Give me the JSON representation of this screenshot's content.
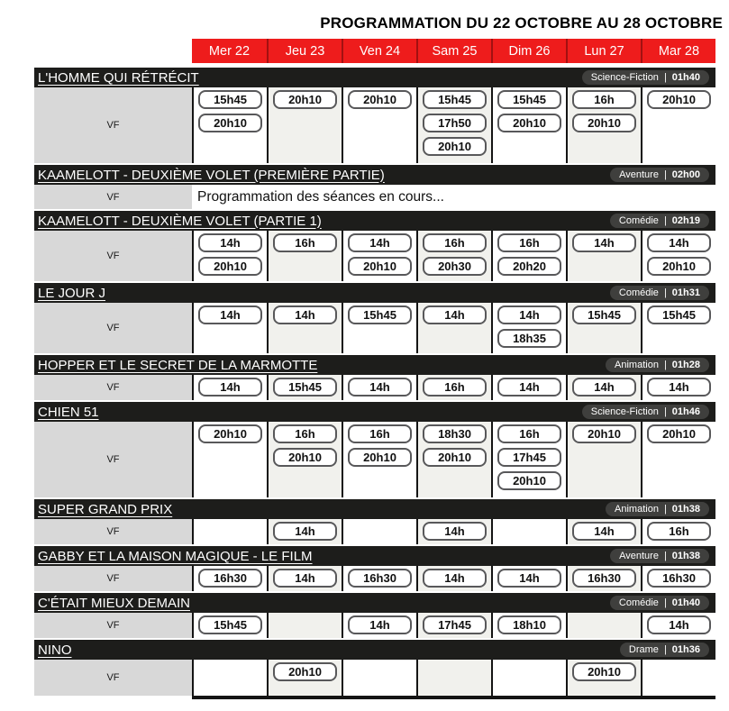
{
  "header": {
    "title": "PROGRAMMATION DU 22 OCTOBRE AU 28 OCTOBRE"
  },
  "days": [
    "Mer 22",
    "Jeu 23",
    "Ven 24",
    "Sam 25",
    "Dim 26",
    "Lun 27",
    "Mar 28"
  ],
  "labels": {
    "version": "VF",
    "badge_separator": "|"
  },
  "colors": {
    "header_red": "#ee1c1c",
    "bar_black": "#1d1d1b",
    "badge_gray": "#3f3f3d",
    "vf_cell_gray": "#d8d8d8",
    "alt_column_tint": "#f1f1ed"
  },
  "films": [
    {
      "title": "L'HOMME QUI RÉTRÉCIT",
      "genre": "Science-Fiction",
      "duration": "01h40",
      "showtimes": [
        [
          "15h45",
          "20h10"
        ],
        [
          "20h10"
        ],
        [
          "20h10"
        ],
        [
          "15h45",
          "17h50",
          "20h10"
        ],
        [
          "15h45",
          "20h10"
        ],
        [
          "16h",
          "20h10"
        ],
        [
          "20h10"
        ]
      ]
    },
    {
      "title": "KAAMELOTT - DEUXIÈME VOLET (PREMIÈRE PARTIE)",
      "genre": "Aventure",
      "duration": "02h00",
      "note": "Programmation des séances en cours..."
    },
    {
      "title": "KAAMELOTT - DEUXIÈME VOLET (PARTIE 1)",
      "genre": "Comédie",
      "duration": "02h19",
      "showtimes": [
        [
          "14h",
          "20h10"
        ],
        [
          "16h"
        ],
        [
          "14h",
          "20h10"
        ],
        [
          "16h",
          "20h30"
        ],
        [
          "16h",
          "20h20"
        ],
        [
          "14h"
        ],
        [
          "14h",
          "20h10"
        ]
      ]
    },
    {
      "title": "LE JOUR J",
      "genre": "Comédie",
      "duration": "01h31",
      "showtimes": [
        [
          "14h"
        ],
        [
          "14h"
        ],
        [
          "15h45"
        ],
        [
          "14h"
        ],
        [
          "14h",
          "18h35"
        ],
        [
          "15h45"
        ],
        [
          "15h45"
        ]
      ]
    },
    {
      "title": "HOPPER ET LE SECRET DE LA MARMOTTE",
      "genre": "Animation",
      "duration": "01h28",
      "showtimes": [
        [
          "14h"
        ],
        [
          "15h45"
        ],
        [
          "14h"
        ],
        [
          "16h"
        ],
        [
          "14h"
        ],
        [
          "14h"
        ],
        [
          "14h"
        ]
      ]
    },
    {
      "title": "CHIEN 51",
      "genre": "Science-Fiction",
      "duration": "01h46",
      "showtimes": [
        [
          "20h10"
        ],
        [
          "16h",
          "20h10"
        ],
        [
          "16h",
          "20h10"
        ],
        [
          "18h30",
          "20h10"
        ],
        [
          "16h",
          "17h45",
          "20h10"
        ],
        [
          "20h10"
        ],
        [
          "20h10"
        ]
      ]
    },
    {
      "title": "SUPER GRAND PRIX",
      "genre": "Animation",
      "duration": "01h38",
      "showtimes": [
        [],
        [
          "14h"
        ],
        [],
        [
          "14h"
        ],
        [],
        [
          "14h"
        ],
        [
          "16h"
        ]
      ]
    },
    {
      "title": "GABBY ET LA MAISON MAGIQUE - LE FILM",
      "genre": "Aventure",
      "duration": "01h38",
      "showtimes": [
        [
          "16h30"
        ],
        [
          "14h"
        ],
        [
          "16h30"
        ],
        [
          "14h"
        ],
        [
          "14h"
        ],
        [
          "16h30"
        ],
        [
          "16h30"
        ]
      ]
    },
    {
      "title": "C'ÉTAIT MIEUX DEMAIN",
      "genre": "Comédie",
      "duration": "01h40",
      "showtimes": [
        [
          "15h45"
        ],
        [],
        [
          "14h"
        ],
        [
          "17h45"
        ],
        [
          "18h10"
        ],
        [],
        [
          "14h"
        ]
      ]
    },
    {
      "title": "NINO",
      "genre": "Drame",
      "duration": "01h36",
      "showtimes": [
        [],
        [
          "20h10"
        ],
        [],
        [],
        [],
        [
          "20h10"
        ],
        []
      ]
    }
  ]
}
